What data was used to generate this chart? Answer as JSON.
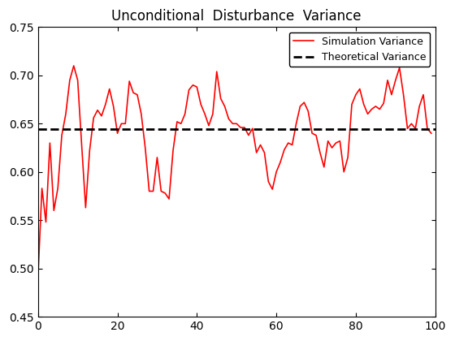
{
  "title": "Unconditional  Disturbance  Variance",
  "theoretical_variance": 0.6447,
  "sim_color": "#FF0000",
  "theo_color": "#000000",
  "xlim": [
    0,
    100
  ],
  "ylim": [
    0.45,
    0.75
  ],
  "yticks": [
    0.45,
    0.5,
    0.55,
    0.6,
    0.65,
    0.7,
    0.75
  ],
  "xticks": [
    0,
    20,
    40,
    60,
    80,
    100
  ],
  "legend_labels": [
    "Simulation Variance",
    "Theoretical Variance"
  ],
  "legend_loc": "upper right",
  "figsize": [
    5.6,
    4.2
  ],
  "dpi": 100,
  "sim_linewidth": 1.2,
  "theo_linewidth": 2.0,
  "sim_y": [
    0.49,
    0.583,
    0.548,
    0.63,
    0.56,
    0.583,
    0.638,
    0.66,
    0.695,
    0.71,
    0.695,
    0.628,
    0.563,
    0.622,
    0.656,
    0.664,
    0.658,
    0.67,
    0.686,
    0.668,
    0.64,
    0.65,
    0.65,
    0.694,
    0.682,
    0.68,
    0.66,
    0.625,
    0.58,
    0.58,
    0.615,
    0.58,
    0.578,
    0.572,
    0.622,
    0.652,
    0.65,
    0.66,
    0.685,
    0.69,
    0.688,
    0.67,
    0.66,
    0.648,
    0.66,
    0.704,
    0.676,
    0.668,
    0.655,
    0.65,
    0.65,
    0.646,
    0.646,
    0.638,
    0.645,
    0.62,
    0.628,
    0.62,
    0.59,
    0.582,
    0.6,
    0.61,
    0.623,
    0.63,
    0.628,
    0.65,
    0.668,
    0.672,
    0.663,
    0.64,
    0.638,
    0.62,
    0.605,
    0.632,
    0.625,
    0.63,
    0.632,
    0.6,
    0.615,
    0.67,
    0.68,
    0.686,
    0.67,
    0.66,
    0.665,
    0.668,
    0.665,
    0.671,
    0.695,
    0.68,
    0.695,
    0.708,
    0.68,
    0.645,
    0.65,
    0.645,
    0.668,
    0.68,
    0.645,
    0.64
  ]
}
